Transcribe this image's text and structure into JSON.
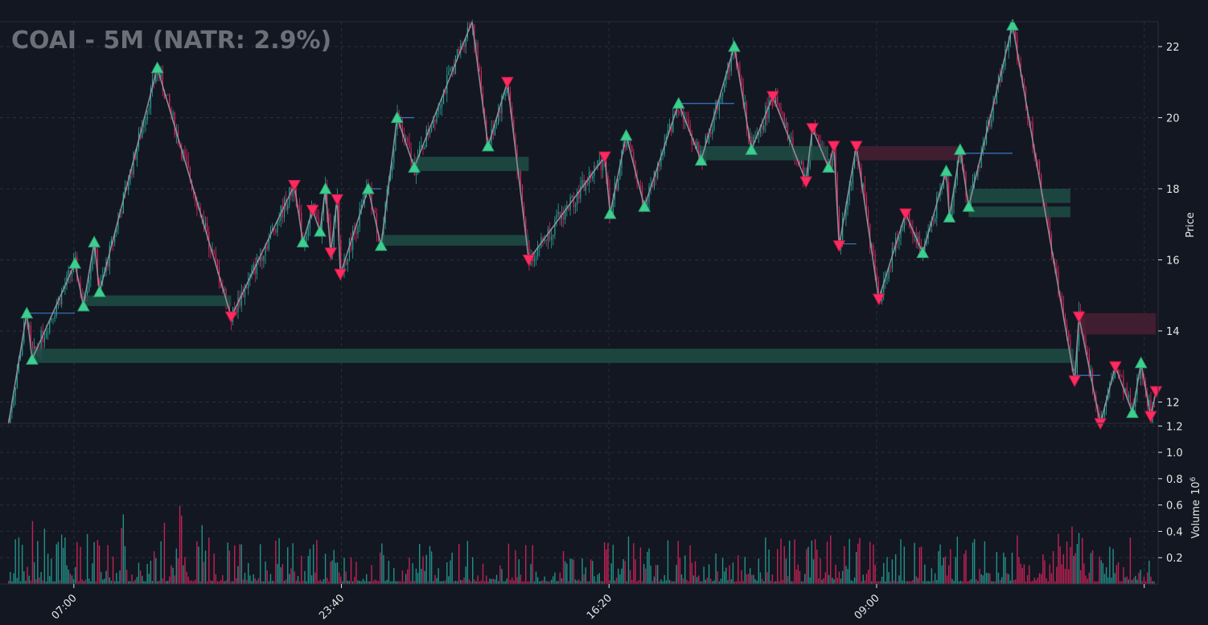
{
  "chart_data": {
    "type": "candlestick",
    "title": "COAI - 5M (NATR: 2.9%)",
    "price_axis": {
      "label": "Price",
      "ylim": [
        11.4,
        22.7
      ],
      "ticks": [
        12,
        14,
        16,
        18,
        20,
        22
      ]
    },
    "volume_axis": {
      "label": "Volume",
      "exponent_label": "1e6",
      "exponent_base": "10",
      "exponent_power": "6",
      "ylim": [
        0,
        1.22
      ],
      "ticks": [
        0.2,
        0.4,
        0.6,
        0.8,
        1.0,
        1.2
      ],
      "tick_labels": [
        "0.2",
        "0.4",
        "0.6",
        "0.8",
        "1.0",
        "1.2"
      ]
    },
    "x_axis": {
      "range": [
        0,
        1000
      ],
      "tick_labels": [
        "07:00",
        "23:40",
        "16:20",
        "09:00",
        ""
      ],
      "tick_positions": [
        69,
        319,
        569,
        819,
        1069
      ]
    },
    "grid": true,
    "colors": {
      "up": "#26a69a",
      "down": "#e0245e",
      "background": "#131722",
      "grid": "#2a2e39",
      "zigzag": "#9598a1",
      "demand_zone": "#1e4d45",
      "supply_zone": "#4a1e33",
      "level_line": "#3a78c2"
    },
    "zigzag": [
      [
        8,
        11.4
      ],
      [
        25,
        14.5
      ],
      [
        30,
        13.2
      ],
      [
        70,
        15.9
      ],
      [
        78,
        14.7
      ],
      [
        88,
        16.5
      ],
      [
        93,
        15.1
      ],
      [
        147,
        21.4
      ],
      [
        216,
        14.4
      ],
      [
        275,
        18.1
      ],
      [
        283,
        16.5
      ],
      [
        292,
        17.4
      ],
      [
        299,
        16.8
      ],
      [
        304,
        18.0
      ],
      [
        309,
        16.2
      ],
      [
        315,
        17.7
      ],
      [
        318,
        15.6
      ],
      [
        344,
        18.0
      ],
      [
        356,
        16.4
      ],
      [
        371,
        20.0
      ],
      [
        387,
        18.6
      ],
      [
        441,
        22.8
      ],
      [
        456,
        19.2
      ],
      [
        474,
        21.0
      ],
      [
        494,
        16.0
      ],
      [
        565,
        18.9
      ],
      [
        570,
        17.3
      ],
      [
        585,
        19.5
      ],
      [
        602,
        17.5
      ],
      [
        634,
        20.4
      ],
      [
        655,
        18.8
      ],
      [
        686,
        22.0
      ],
      [
        702,
        19.1
      ],
      [
        722,
        20.6
      ],
      [
        753,
        18.2
      ],
      [
        759,
        19.7
      ],
      [
        774,
        18.6
      ],
      [
        779,
        19.2
      ],
      [
        784,
        16.4
      ],
      [
        800,
        19.2
      ],
      [
        821,
        14.9
      ],
      [
        846,
        17.3
      ],
      [
        862,
        16.2
      ],
      [
        884,
        18.5
      ],
      [
        887,
        17.2
      ],
      [
        897,
        19.1
      ],
      [
        905,
        17.5
      ],
      [
        946,
        22.6
      ],
      [
        1004,
        12.6
      ],
      [
        1008,
        14.4
      ],
      [
        1028,
        11.4
      ],
      [
        1042,
        13.0
      ],
      [
        1058,
        11.7
      ],
      [
        1066,
        13.1
      ],
      [
        1075,
        11.6
      ],
      [
        1080,
        12.3
      ]
    ],
    "swing_highs": [
      [
        275,
        18.1
      ],
      [
        292,
        17.4
      ],
      [
        315,
        17.7
      ],
      [
        474,
        21.0
      ],
      [
        565,
        18.9
      ],
      [
        722,
        20.6
      ],
      [
        759,
        19.7
      ],
      [
        779,
        19.2
      ],
      [
        800,
        19.2
      ],
      [
        846,
        17.3
      ],
      [
        1008,
        14.4
      ],
      [
        1042,
        13.0
      ],
      [
        1080,
        12.3
      ]
    ],
    "swing_lows": [
      [
        216,
        14.4
      ],
      [
        309,
        16.2
      ],
      [
        318,
        15.6
      ],
      [
        494,
        16.0
      ],
      [
        753,
        18.2
      ],
      [
        784,
        16.4
      ],
      [
        821,
        14.9
      ],
      [
        1004,
        12.6
      ],
      [
        1028,
        11.4
      ],
      [
        1075,
        11.6
      ]
    ],
    "swing_highs_up": [
      [
        25,
        14.5
      ],
      [
        70,
        15.9
      ],
      [
        88,
        16.5
      ],
      [
        147,
        21.4
      ],
      [
        304,
        18.0
      ],
      [
        344,
        18.0
      ],
      [
        371,
        20.0
      ],
      [
        585,
        19.5
      ],
      [
        634,
        20.4
      ],
      [
        686,
        22.0
      ],
      [
        884,
        18.5
      ],
      [
        897,
        19.1
      ],
      [
        946,
        22.6
      ],
      [
        1066,
        13.1
      ]
    ],
    "swing_lows_up": [
      [
        30,
        13.2
      ],
      [
        78,
        14.7
      ],
      [
        93,
        15.1
      ],
      [
        283,
        16.5
      ],
      [
        299,
        16.8
      ],
      [
        356,
        16.4
      ],
      [
        387,
        18.6
      ],
      [
        456,
        19.2
      ],
      [
        570,
        17.3
      ],
      [
        602,
        17.5
      ],
      [
        655,
        18.8
      ],
      [
        702,
        19.1
      ],
      [
        774,
        18.6
      ],
      [
        862,
        16.2
      ],
      [
        887,
        17.2
      ],
      [
        905,
        17.5
      ],
      [
        1058,
        11.7
      ]
    ],
    "zones": [
      {
        "kind": "demand",
        "x": [
          30,
          1003
        ],
        "y": [
          13.1,
          13.5
        ]
      },
      {
        "kind": "demand",
        "x": [
          80,
          216
        ],
        "y": [
          14.7,
          15.0
        ]
      },
      {
        "kind": "demand",
        "x": [
          356,
          494
        ],
        "y": [
          16.4,
          16.7
        ]
      },
      {
        "kind": "demand",
        "x": [
          387,
          494
        ],
        "y": [
          18.5,
          18.9
        ]
      },
      {
        "kind": "demand",
        "x": [
          655,
          774
        ],
        "y": [
          18.8,
          19.2
        ]
      },
      {
        "kind": "demand",
        "x": [
          905,
          1000
        ],
        "y": [
          17.2,
          17.5
        ]
      },
      {
        "kind": "demand",
        "x": [
          905,
          1000
        ],
        "y": [
          17.6,
          18.0
        ]
      },
      {
        "kind": "supply",
        "x": [
          800,
          897
        ],
        "y": [
          18.8,
          19.2
        ]
      },
      {
        "kind": "supply",
        "x": [
          1008,
          1080
        ],
        "y": [
          13.9,
          14.5
        ]
      }
    ],
    "level_lines": [
      {
        "x": [
          25,
          70
        ],
        "y": 14.5
      },
      {
        "x": [
          344,
          356
        ],
        "y": 18.0
      },
      {
        "x": [
          371,
          387
        ],
        "y": 20.0
      },
      {
        "x": [
          634,
          686
        ],
        "y": 20.4
      },
      {
        "x": [
          784,
          800
        ],
        "y": 16.45
      },
      {
        "x": [
          897,
          946
        ],
        "y": 19.0
      },
      {
        "x": [
          1004,
          1028
        ],
        "y": 12.75
      }
    ]
  }
}
